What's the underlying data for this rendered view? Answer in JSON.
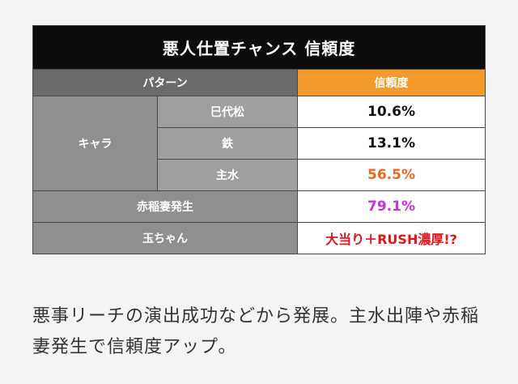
{
  "table": {
    "title": "悪人仕置チャンス 信頼度",
    "header_pattern": "パターン",
    "header_reliability": "信頼度",
    "group_label": "キャラ",
    "rows": [
      {
        "label": "巳代松",
        "value": "10.6%",
        "color": "#111111"
      },
      {
        "label": "鉄",
        "value": "13.1%",
        "color": "#111111"
      },
      {
        "label": "主水",
        "value": "56.5%",
        "color": "#e8681e"
      },
      {
        "label": "赤稲妻発生",
        "value": "79.1%",
        "color": "#c832d8"
      },
      {
        "label": "玉ちゃん",
        "value": "大当り＋RUSH濃厚!?",
        "color": "#e0161b"
      }
    ]
  },
  "description": "悪事リーチの演出成功などから発展。主水出陣や赤稲妻発生で信頼度アップ。",
  "colors": {
    "title_bg": "#0c0c0c",
    "header_pattern_bg": "#6b6b6b",
    "header_reliability_bg": "#f39a2b",
    "label_bg": "#8f8f8f"
  }
}
